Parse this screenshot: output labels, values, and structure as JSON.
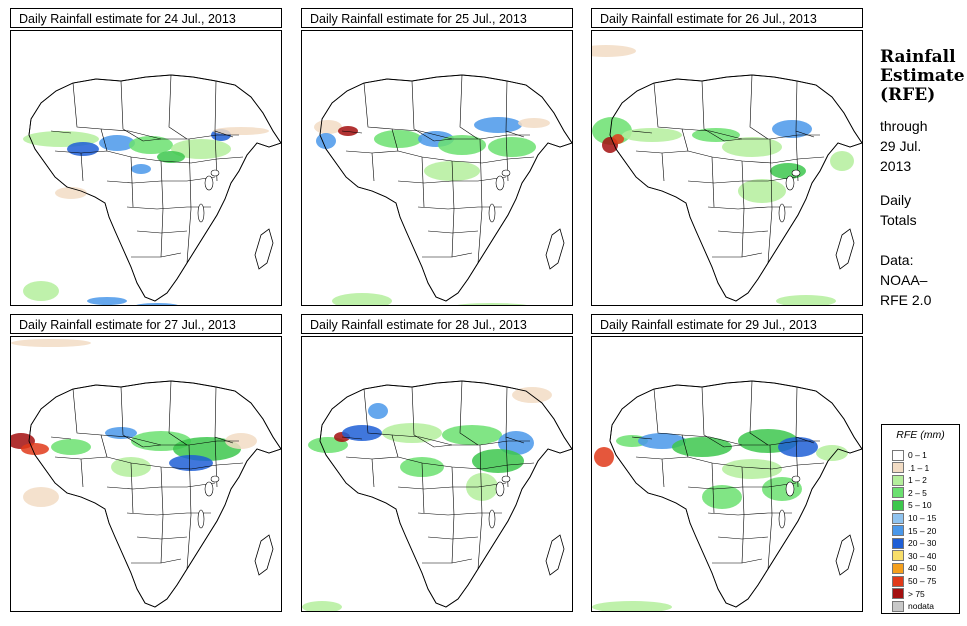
{
  "panels": [
    {
      "title": "Daily Rainfall estimate for  24 Jul., 2013",
      "date": "24 Jul."
    },
    {
      "title": "Daily Rainfall estimate for  25 Jul., 2013",
      "date": "25 Jul."
    },
    {
      "title": "Daily Rainfall estimate for  26 Jul., 2013",
      "date": "26 Jul."
    },
    {
      "title": "Daily Rainfall estimate for  27 Jul., 2013",
      "date": "27 Jul."
    },
    {
      "title": "Daily Rainfall estimate for  28 Jul., 2013",
      "date": "28 Jul."
    },
    {
      "title": "Daily Rainfall estimate for  29 Jul., 2013",
      "date": "29 Jul."
    }
  ],
  "sidebar": {
    "title_line1": "Rainfall",
    "title_line2": "Estimate",
    "title_line3": "(RFE)",
    "through": "through",
    "end_date_line1": "29 Jul.",
    "end_date_line2": "2013",
    "totals_line1": "Daily",
    "totals_line2": "Totals",
    "data_label": "Data:",
    "source_line1": "NOAA–",
    "source_line2": "RFE 2.0"
  },
  "legend": {
    "title": "RFE (mm)",
    "items": [
      {
        "label": "0 – 1",
        "color": "#ffffff"
      },
      {
        "label": ".1 – 1",
        "color": "#f2dcc4"
      },
      {
        "label": "1 – 2",
        "color": "#b4ee9c"
      },
      {
        "label": "2 – 5",
        "color": "#6be070"
      },
      {
        "label": "5 – 10",
        "color": "#3dc74d"
      },
      {
        "label": "10 – 15",
        "color": "#8fc3ef"
      },
      {
        "label": "15 – 20",
        "color": "#4a98ea"
      },
      {
        "label": "20 – 30",
        "color": "#1f5fd6"
      },
      {
        "label": "30 – 40",
        "color": "#f8de6a"
      },
      {
        "label": "40 – 50",
        "color": "#f5a01e"
      },
      {
        "label": "50 – 75",
        "color": "#e03a1a"
      },
      {
        "label": "> 75",
        "color": "#a30f0f"
      },
      {
        "label": "nodata",
        "color": "#c8c8c8"
      }
    ]
  }
}
